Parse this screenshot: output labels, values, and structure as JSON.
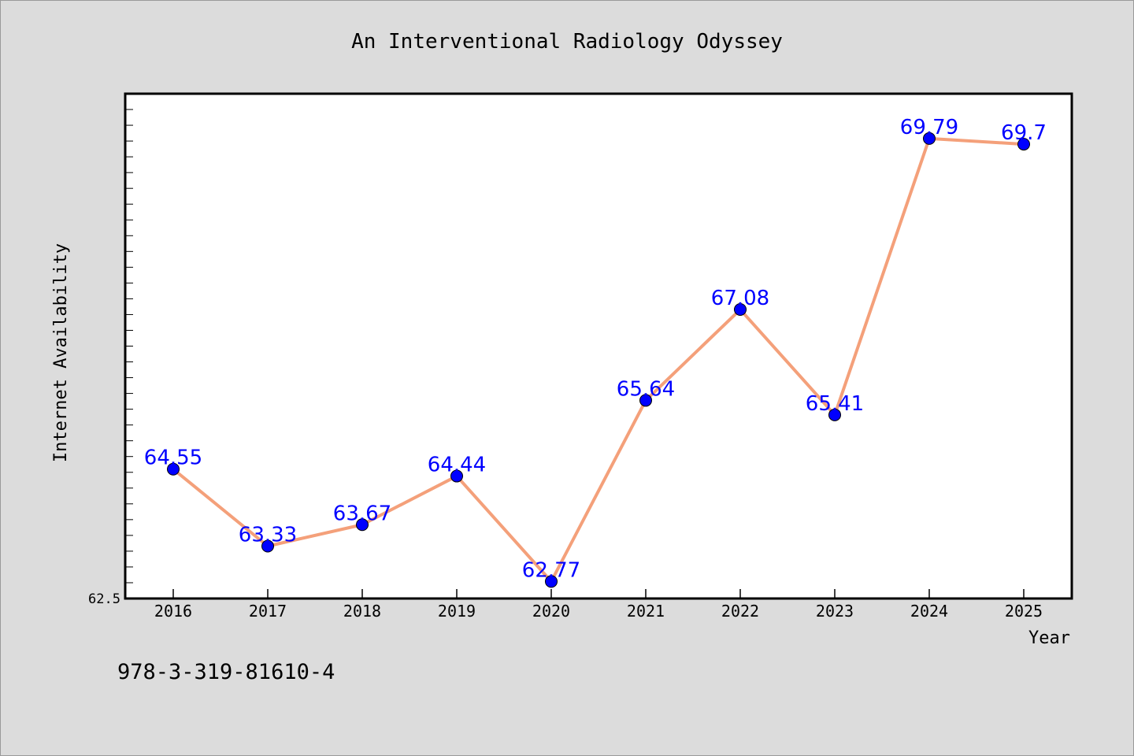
{
  "chart_data": {
    "type": "line",
    "title": "An Interventional Radiology Odyssey",
    "xlabel": "Year",
    "ylabel": "Internet Availability",
    "categories": [
      "2016",
      "2017",
      "2018",
      "2019",
      "2020",
      "2021",
      "2022",
      "2023",
      "2024",
      "2025"
    ],
    "values": [
      64.55,
      63.33,
      63.67,
      64.44,
      62.77,
      65.64,
      67.08,
      65.41,
      69.79,
      69.7
    ],
    "data_labels": [
      "64.55",
      "63.33",
      "63.67",
      "64.44",
      "62.77",
      "65.64",
      "67.08",
      "65.41",
      "69.79",
      "69.7"
    ],
    "ylim": [
      62.5,
      70.5
    ],
    "ytick_labels": [
      "62.5"
    ],
    "grid": false,
    "line_color": "#f4a07a",
    "marker_color": "#0000ff",
    "label_color": "#0000ff"
  },
  "footer_text": "978-3-319-81610-4"
}
